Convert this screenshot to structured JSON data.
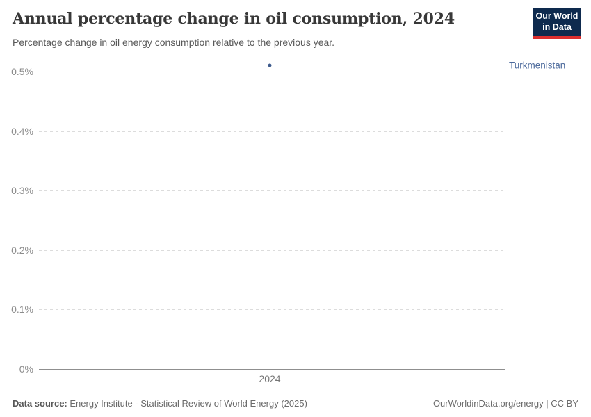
{
  "logo": {
    "line1": "Our World",
    "line2": "in Data",
    "bg_color": "#0e2a4e",
    "stripe_color": "#dc2f2f"
  },
  "chart_data": {
    "type": "scatter",
    "title": "Annual percentage change in oil consumption, 2024",
    "subtitle": "Percentage change in oil energy consumption relative to the previous year.",
    "x": [
      2024
    ],
    "xtick_labels": [
      "2024"
    ],
    "series": [
      {
        "name": "Turkmenistan",
        "values": [
          0.51
        ],
        "point_color": "#3d5a8c",
        "label_color": "#4c6a9c"
      }
    ],
    "xlabel": "",
    "ylabel": "",
    "ylim": [
      0,
      0.5
    ],
    "yticks": [
      0,
      0.1,
      0.2,
      0.3,
      0.4,
      0.5
    ],
    "ytick_suffix": "%",
    "grid": "horizontal-dashed",
    "legend_position": "right-of-point"
  },
  "colors": {
    "title": "#383838",
    "subtitle": "#595959",
    "tick_label": "#8c8c8c",
    "gridline": "#dcdcdc",
    "axis": "#8f8f8f"
  },
  "footer": {
    "datasource_label": "Data source:",
    "datasource": "Energy Institute - Statistical Review of World Energy (2025)",
    "credit": "OurWorldinData.org/energy | CC BY"
  }
}
